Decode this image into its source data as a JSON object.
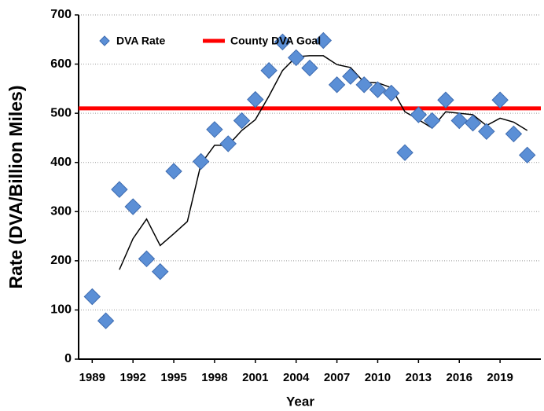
{
  "chart_data": {
    "type": "scatter",
    "xlabel": "Year",
    "ylabel": "Rate (DVA/Billion Miles)",
    "xlim": [
      1988,
      2022
    ],
    "xticks": [
      1989,
      1992,
      1995,
      1998,
      2001,
      2004,
      2007,
      2010,
      2013,
      2016,
      2019
    ],
    "ylim": [
      0,
      700
    ],
    "yticks": [
      0,
      100,
      200,
      300,
      400,
      500,
      600,
      700
    ],
    "grid": true,
    "x": [
      1989,
      1990,
      1991,
      1992,
      1993,
      1994,
      1995,
      1996,
      1997,
      1998,
      1999,
      2000,
      2001,
      2002,
      2003,
      2004,
      2005,
      2006,
      2007,
      2008,
      2009,
      2010,
      2011,
      2012,
      2013,
      2014,
      2015,
      2016,
      2017,
      2018,
      2019,
      2020,
      2021
    ],
    "series": [
      {
        "name": "DVA Rate",
        "color": "#5b8fd6",
        "values": [
          127,
          78,
          345,
          310,
          204,
          178,
          382,
          null,
          402,
          467,
          438,
          485,
          528,
          587,
          645,
          613,
          592,
          648,
          558,
          575,
          558,
          548,
          541,
          420,
          497,
          485,
          527,
          485,
          480,
          463,
          527,
          458,
          415
        ]
      }
    ],
    "trend": {
      "color": "#000000",
      "values": [
        null,
        null,
        182,
        245,
        285,
        231,
        255,
        280,
        397,
        435,
        435,
        465,
        487,
        535,
        587,
        615,
        617,
        617,
        599,
        593,
        563,
        562,
        552,
        503,
        487,
        470,
        503,
        500,
        497,
        475,
        490,
        482,
        465
      ]
    },
    "goal": {
      "name": "County DVA Goal",
      "value": 510,
      "color": "#ff0000"
    }
  }
}
